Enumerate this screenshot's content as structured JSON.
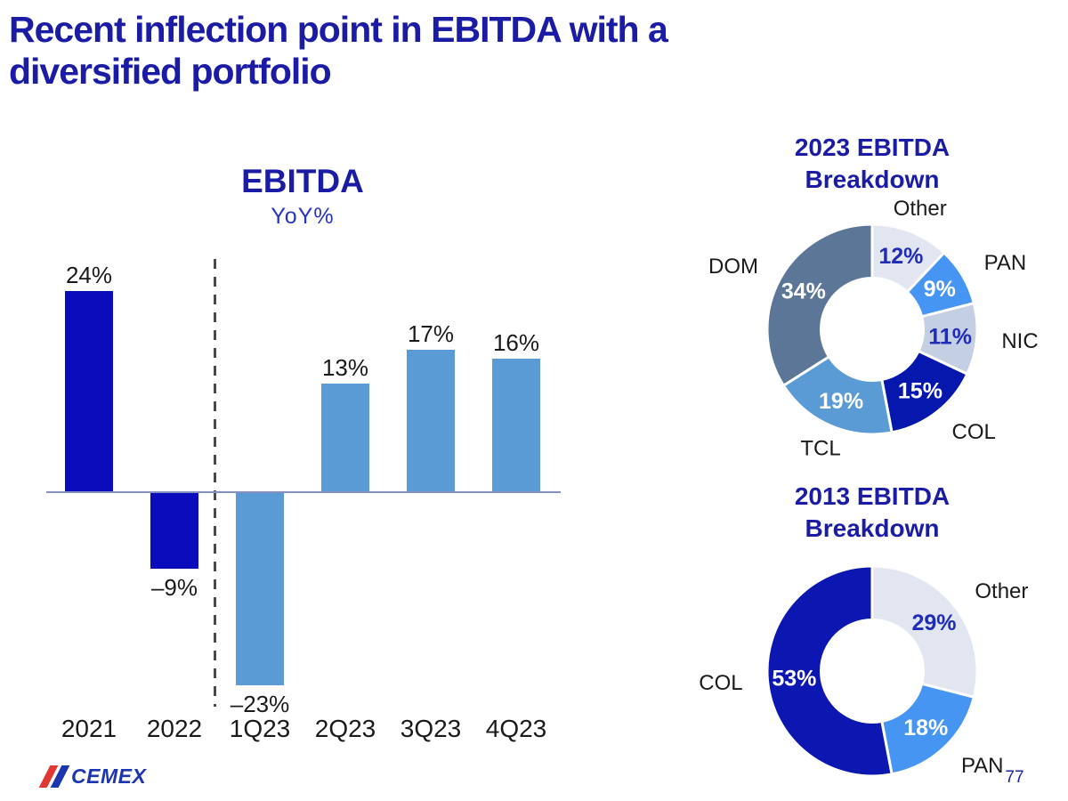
{
  "slide": {
    "title_line1": "Recent inflection point in EBITDA with a",
    "title_line2": "diversified portfolio",
    "page_number": "77",
    "logo_text": "CEMEX"
  },
  "palette": {
    "title_blue": "#1B1CA5",
    "subtitle_blue": "#2634C2",
    "navy": "#0B0CBB",
    "sky": "#5B9BD5",
    "axis": "#8590BD",
    "dash": "#4a4a4a",
    "text_dark": "#1a1a1a",
    "pct_dark_blue": "#1F2CB8",
    "page_blue": "#1B23A8",
    "logo_red": "#E03830",
    "logo_blue": "#1E36AD"
  },
  "chart_data": [
    {
      "type": "bar",
      "title": "EBITDA",
      "subtitle": "YoY%",
      "categories": [
        "2021",
        "2022",
        "1Q23",
        "2Q23",
        "3Q23",
        "4Q23"
      ],
      "values": [
        24,
        -9,
        -23,
        13,
        17,
        16
      ],
      "value_labels": [
        "24%",
        "–9%",
        "–23%",
        "13%",
        "17%",
        "16%"
      ],
      "bar_colors": [
        "navy",
        "navy",
        "sky",
        "sky",
        "sky",
        "sky"
      ],
      "separator_after_category": "2022",
      "ylim": [
        -25,
        27
      ],
      "grid": "off",
      "ylabel": "YoY%"
    },
    {
      "type": "pie",
      "subtype": "donut",
      "title_line1": "2023 EBITDA",
      "title_line2": "Breakdown",
      "segments": [
        {
          "label": "Other",
          "value": 12,
          "pct": "12%",
          "color": "#E2E6F1",
          "pct_color": "#1F2CB8"
        },
        {
          "label": "PAN",
          "value": 9,
          "pct": "9%",
          "color": "#4695F2",
          "pct_color": "#FFFFFF"
        },
        {
          "label": "NIC",
          "value": 11,
          "pct": "11%",
          "color": "#C5CFE3",
          "pct_color": "#1F2CB8"
        },
        {
          "label": "COL",
          "value": 15,
          "pct": "15%",
          "color": "#0617AE",
          "pct_color": "#FFFFFF"
        },
        {
          "label": "TCL",
          "value": 19,
          "pct": "19%",
          "color": "#5B9BD5",
          "pct_color": "#FFFFFF"
        },
        {
          "label": "DOM",
          "value": 34,
          "pct": "34%",
          "color": "#5C7698",
          "pct_color": "#FFFFFF"
        }
      ]
    },
    {
      "type": "pie",
      "subtype": "donut",
      "title_line1": "2013 EBITDA",
      "title_line2": "Breakdown",
      "segments": [
        {
          "label": "Other",
          "value": 29,
          "pct": "29%",
          "color": "#E2E6F1",
          "pct_color": "#1F2CB8"
        },
        {
          "label": "PAN",
          "value": 18,
          "pct": "18%",
          "color": "#4695F2",
          "pct_color": "#FFFFFF"
        },
        {
          "label": "COL",
          "value": 53,
          "pct": "53%",
          "color": "#0C16B0",
          "pct_color": "#FFFFFF"
        }
      ]
    }
  ]
}
